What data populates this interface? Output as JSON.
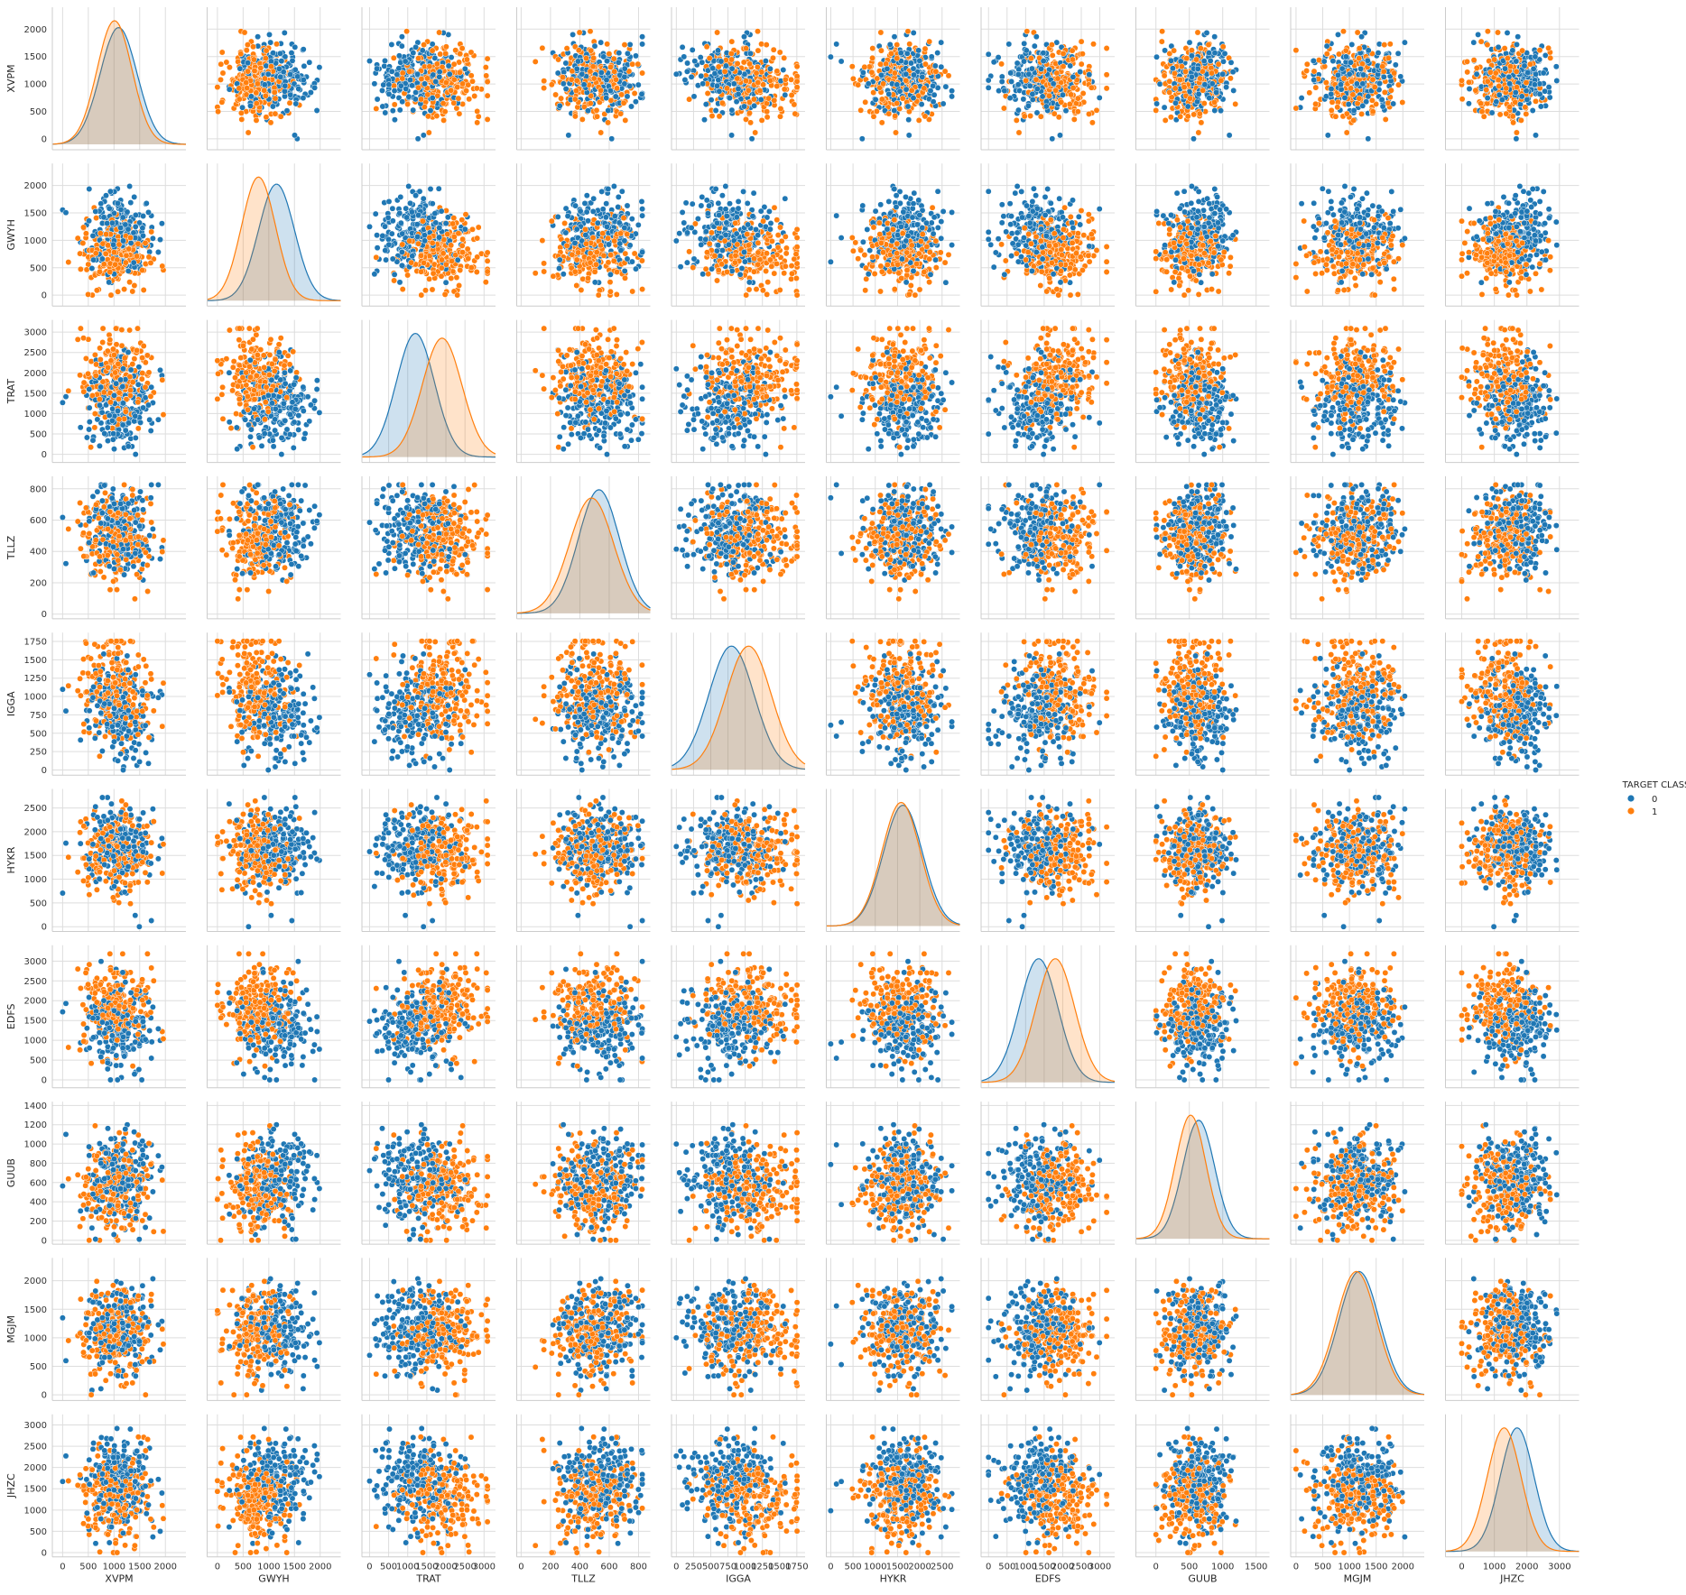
{
  "chart_data": {
    "type": "pairplot",
    "variables": [
      "XVPM",
      "GWYH",
      "TRAT",
      "TLLZ",
      "IGGA",
      "HYKR",
      "EDFS",
      "GUUB",
      "MGJM",
      "JHZC"
    ],
    "diagonal": "kde",
    "offdiagonal": "scatter",
    "grid": true,
    "hue": "TARGET CLASS",
    "legend": {
      "title": "TARGET CLASS",
      "position": "right",
      "entries": [
        {
          "label": "0",
          "color": "#1f77b4"
        },
        {
          "label": "1",
          "color": "#ff7f0e"
        }
      ]
    },
    "series_colors": {
      "0": "#1f77b4",
      "1": "#ff7f0e"
    },
    "axes": {
      "XVPM": {
        "range": [
          -200,
          2400
        ],
        "ticks": [
          0,
          500,
          1000,
          1500,
          2000
        ],
        "tick_labels": [
          "0",
          "500",
          "1000",
          "1500",
          "2000"
        ],
        "class_stats": {
          "0": {
            "mean": 1090,
            "sd": 360
          },
          "1": {
            "mean": 1010,
            "sd": 340
          }
        }
      },
      "GWYH": {
        "range": [
          -200,
          2400
        ],
        "ticks": [
          0,
          500,
          1000,
          1500,
          2000
        ],
        "tick_labels": [
          "0",
          "500",
          "1000",
          "1500",
          "2000"
        ],
        "class_stats": {
          "0": {
            "mean": 1150,
            "sd": 350
          },
          "1": {
            "mean": 800,
            "sd": 330
          }
        }
      },
      "TRAT": {
        "range": [
          -200,
          3300
        ],
        "ticks": [
          0,
          500,
          1000,
          1500,
          2000,
          2500,
          3000
        ],
        "tick_labels": [
          "0",
          "500",
          "1000",
          "1500",
          "2000",
          "2500",
          "3000"
        ],
        "class_stats": {
          "0": {
            "mean": 1200,
            "sd": 500
          },
          "1": {
            "mean": 1900,
            "sd": 520
          }
        }
      },
      "TLLZ": {
        "range": [
          -30,
          880
        ],
        "ticks": [
          0,
          200,
          400,
          600,
          800
        ],
        "tick_labels": [
          "0",
          "200",
          "400",
          "600",
          "800"
        ],
        "class_stats": {
          "0": {
            "mean": 530,
            "sd": 140
          },
          "1": {
            "mean": 480,
            "sd": 150
          }
        }
      },
      "IGGA": {
        "range": [
          -70,
          1870
        ],
        "ticks": [
          0,
          250,
          500,
          750,
          1000,
          1250,
          1500,
          1750
        ],
        "tick_labels": [
          "0",
          "250",
          "500",
          "750",
          "1000",
          "1250",
          "1500",
          "1750"
        ],
        "class_stats": {
          "0": {
            "mean": 800,
            "sd": 330
          },
          "1": {
            "mean": 1050,
            "sd": 330
          }
        }
      },
      "HYKR": {
        "range": [
          -100,
          2900
        ],
        "ticks": [
          0,
          500,
          1000,
          1500,
          2000,
          2500
        ],
        "tick_labels": [
          "0",
          "500",
          "1000",
          "1500",
          "2000",
          "2500"
        ],
        "class_stats": {
          "0": {
            "mean": 1620,
            "sd": 440
          },
          "1": {
            "mean": 1580,
            "sd": 430
          }
        }
      },
      "EDFS": {
        "range": [
          -200,
          3400
        ],
        "ticks": [
          0,
          500,
          1000,
          1500,
          2000,
          2500,
          3000
        ],
        "tick_labels": [
          "0",
          "500",
          "1000",
          "1500",
          "2000",
          "2500",
          "3000"
        ],
        "class_stats": {
          "0": {
            "mean": 1350,
            "sd": 520
          },
          "1": {
            "mean": 1800,
            "sd": 520
          }
        }
      },
      "GUUB": {
        "range": [
          -40,
          1440
        ],
        "ticks": [
          0,
          200,
          400,
          600,
          800,
          1000,
          1200,
          1400
        ],
        "tick_labels": [
          "0",
          "200",
          "400",
          "600",
          "800",
          "1000",
          "1200",
          "1400"
        ],
        "x_ticks": [
          0,
          500,
          1000,
          1500
        ],
        "x_tick_labels": [
          "0",
          "500",
          "1000",
          "1500"
        ],
        "x_range": [
          -300,
          1700
        ],
        "class_stats": {
          "0": {
            "mean": 640,
            "sd": 240
          },
          "1": {
            "mean": 520,
            "sd": 230
          }
        }
      },
      "MGJM": {
        "range": [
          -100,
          2400
        ],
        "ticks": [
          0,
          500,
          1000,
          1500,
          2000
        ],
        "tick_labels": [
          "0",
          "500",
          "1000",
          "1500",
          "2000"
        ],
        "class_stats": {
          "0": {
            "mean": 1180,
            "sd": 380
          },
          "1": {
            "mean": 1130,
            "sd": 380
          }
        }
      },
      "JHZC": {
        "range": [
          -100,
          3250
        ],
        "ticks": [
          0,
          500,
          1000,
          1500,
          2000,
          2500,
          3000
        ],
        "tick_labels": [
          "0",
          "500",
          "1000",
          "1500",
          "2000",
          "2500",
          "3000"
        ],
        "x_ticks": [
          0,
          1000,
          2000,
          3000
        ],
        "x_tick_labels": [
          "0",
          "1000",
          "2000",
          "3000"
        ],
        "x_range": [
          -500,
          3600
        ],
        "class_stats": {
          "0": {
            "mean": 1700,
            "sd": 520
          },
          "1": {
            "mean": 1300,
            "sd": 520
          }
        }
      }
    },
    "points_per_class": 220
  }
}
